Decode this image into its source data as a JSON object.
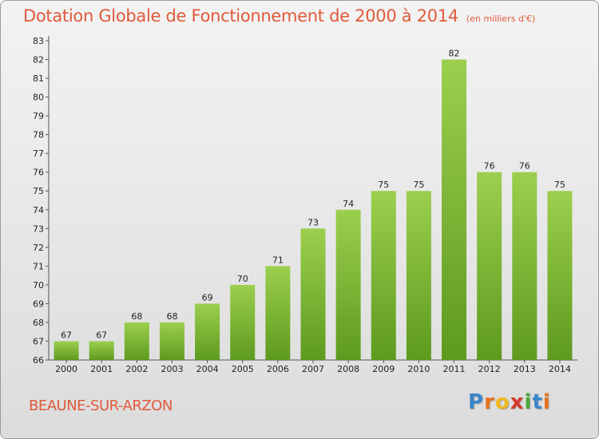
{
  "header": {
    "title": "Dotation Globale de Fonctionnement de 2000 à 2014",
    "unit": "(en milliers d'€)"
  },
  "footer": {
    "commune": "BEAUNE-SUR-ARZON",
    "brand": [
      "P",
      "r",
      "o",
      "x",
      "i",
      "t",
      "i"
    ],
    "brand_colors": [
      "#3a86c8",
      "#e8731c",
      "#f0b81c",
      "#d43a2a",
      "#4aa63a",
      "#3a86c8",
      "#e8731c"
    ]
  },
  "colors": {
    "bar_top": "#9ccf4e",
    "bar_bottom": "#5d9a1e",
    "accent": "#e05a3a"
  },
  "chart_data": {
    "type": "bar",
    "title": "Dotation Globale de Fonctionnement de 2000 à 2014",
    "xlabel": "",
    "ylabel": "",
    "ylim": [
      66,
      83
    ],
    "grid": false,
    "categories": [
      "2000",
      "2001",
      "2002",
      "2003",
      "2004",
      "2005",
      "2006",
      "2007",
      "2008",
      "2009",
      "2010",
      "2011",
      "2012",
      "2013",
      "2014"
    ],
    "values": [
      67,
      67,
      68,
      68,
      69,
      70,
      71,
      73,
      74,
      75,
      75,
      82,
      76,
      76,
      75
    ],
    "yticks": [
      66,
      67,
      68,
      69,
      70,
      71,
      72,
      73,
      74,
      75,
      76,
      77,
      78,
      79,
      80,
      81,
      82,
      83
    ]
  }
}
